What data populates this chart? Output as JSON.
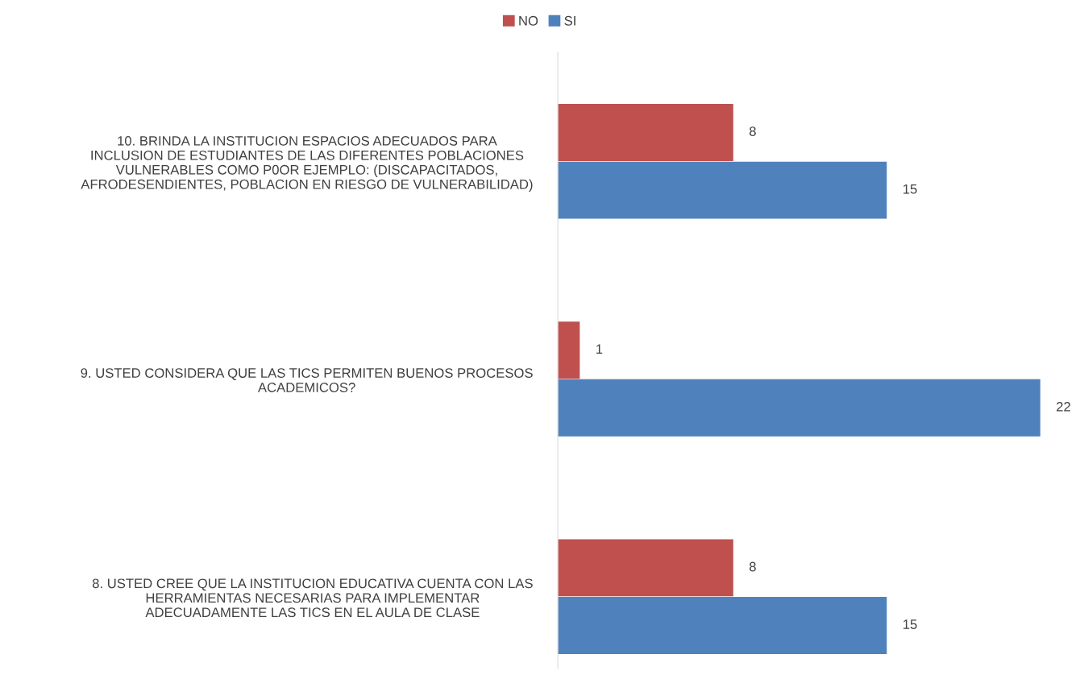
{
  "chart_data": {
    "type": "bar",
    "orientation": "horizontal",
    "categories": [
      "10. BRINDA LA INSTITUCION ESPACIOS ADECUADOS PARA\nINCLUSION DE ESTUDIANTES DE LAS DIFERENTES POBLACIONES\nVULNERABLES COMO P0OR EJEMPLO: (DISCAPACITADOS,\nAFRODESENDIENTES, POBLACION EN RIESGO DE VULNERABILIDAD)",
      "9. USTED CONSIDERA QUE LAS TICS PERMITEN BUENOS PROCESOS\nACADEMICOS?",
      "8. USTED CREE QUE LA INSTITUCION EDUCATIVA CUENTA CON LAS\nHERRAMIENTAS NECESARIAS PARA IMPLEMENTAR\nADECUADAMENTE LAS TICS EN EL AULA DE CLASE"
    ],
    "series": [
      {
        "name": "NO",
        "color": "#c0504d",
        "values": [
          8,
          1,
          8
        ]
      },
      {
        "name": "SI",
        "color": "#4f81bd",
        "values": [
          15,
          22,
          15
        ]
      }
    ],
    "data_labels": true,
    "legend": "top",
    "grid": false
  }
}
